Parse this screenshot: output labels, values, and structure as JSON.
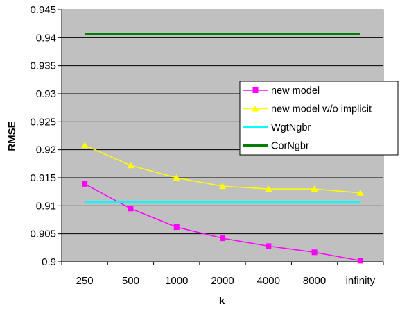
{
  "chart_data": {
    "type": "line",
    "title": "",
    "xlabel": "k",
    "ylabel": "RMSE",
    "categories": [
      "250",
      "500",
      "1000",
      "2000",
      "4000",
      "8000",
      "infinity"
    ],
    "ylim": [
      0.9,
      0.945
    ],
    "yticks": [
      0.9,
      0.905,
      0.91,
      0.915,
      0.92,
      0.925,
      0.93,
      0.935,
      0.94,
      0.945
    ],
    "ytick_labels": [
      "0.9",
      "0.905",
      "0.91",
      "0.915",
      "0.92",
      "0.925",
      "0.93",
      "0.935",
      "0.94",
      "0.945"
    ],
    "grid": true,
    "legend_position": "right",
    "background_color": "#c0c0c0",
    "series": [
      {
        "name": "new model",
        "color": "#ff00ff",
        "marker": "square",
        "values": [
          0.9139,
          0.9095,
          0.9062,
          0.9042,
          0.9028,
          0.9017,
          0.9002
        ]
      },
      {
        "name": "new model w/o implicit",
        "color": "#ffff00",
        "marker": "triangle",
        "values": [
          0.9208,
          0.9172,
          0.915,
          0.9135,
          0.913,
          0.913,
          0.9123
        ]
      },
      {
        "name": "WgtNgbr",
        "color": "#00ffff",
        "marker": "none",
        "values": [
          0.9107,
          0.9107,
          0.9107,
          0.9107,
          0.9107,
          0.9107,
          0.9107
        ]
      },
      {
        "name": "CorNgbr",
        "color": "#008000",
        "marker": "none",
        "values": [
          0.9406,
          0.9406,
          0.9406,
          0.9406,
          0.9406,
          0.9406,
          0.9406
        ]
      }
    ]
  }
}
